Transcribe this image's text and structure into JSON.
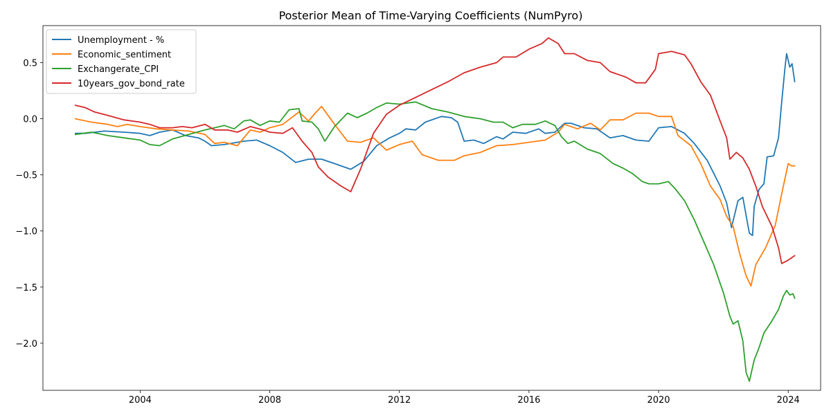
{
  "chart_data": {
    "type": "line",
    "title": "Posterior Mean of Time-Varying Coefficients (NumPyro)",
    "xlabel": "",
    "ylabel": "",
    "xlim": [
      2001.0,
      2025.0
    ],
    "ylim": [
      -2.42,
      0.83
    ],
    "xticks": [
      2004,
      2008,
      2012,
      2016,
      2020,
      2024
    ],
    "xtick_labels": [
      "2004",
      "2008",
      "2012",
      "2016",
      "2020",
      "2024"
    ],
    "yticks": [
      0.5,
      0.0,
      -0.5,
      -1.0,
      -1.5,
      -2.0
    ],
    "ytick_labels": [
      "0.5",
      "0.0",
      "−0.5",
      "−1.0",
      "−1.5",
      "−2.0"
    ],
    "legend_position": "top-left",
    "grid": false,
    "series": [
      {
        "name": "Unemployment - %",
        "color": "#1f77b4",
        "points": [
          [
            2002.0,
            -0.13
          ],
          [
            2002.3,
            -0.13
          ],
          [
            2002.9,
            -0.11
          ],
          [
            2003.5,
            -0.12
          ],
          [
            2004.0,
            -0.13
          ],
          [
            2004.3,
            -0.15
          ],
          [
            2004.6,
            -0.12
          ],
          [
            2005.0,
            -0.1
          ],
          [
            2005.4,
            -0.15
          ],
          [
            2005.8,
            -0.17
          ],
          [
            2006.0,
            -0.2
          ],
          [
            2006.2,
            -0.24
          ],
          [
            2006.6,
            -0.23
          ],
          [
            2007.2,
            -0.2
          ],
          [
            2007.6,
            -0.19
          ],
          [
            2008.0,
            -0.24
          ],
          [
            2008.4,
            -0.3
          ],
          [
            2008.8,
            -0.39
          ],
          [
            2009.2,
            -0.36
          ],
          [
            2009.6,
            -0.36
          ],
          [
            2010.0,
            -0.4
          ],
          [
            2010.5,
            -0.45
          ],
          [
            2010.9,
            -0.38
          ],
          [
            2011.3,
            -0.24
          ],
          [
            2011.7,
            -0.17
          ],
          [
            2012.0,
            -0.13
          ],
          [
            2012.2,
            -0.09
          ],
          [
            2012.5,
            -0.1
          ],
          [
            2012.8,
            -0.03
          ],
          [
            2013.3,
            0.02
          ],
          [
            2013.6,
            0.01
          ],
          [
            2013.8,
            -0.03
          ],
          [
            2014.0,
            -0.2
          ],
          [
            2014.3,
            -0.19
          ],
          [
            2014.6,
            -0.22
          ],
          [
            2015.0,
            -0.16
          ],
          [
            2015.2,
            -0.18
          ],
          [
            2015.5,
            -0.12
          ],
          [
            2015.9,
            -0.13
          ],
          [
            2016.3,
            -0.09
          ],
          [
            2016.5,
            -0.13
          ],
          [
            2016.8,
            -0.12
          ],
          [
            2017.1,
            -0.04
          ],
          [
            2017.3,
            -0.04
          ],
          [
            2017.7,
            -0.08
          ],
          [
            2018.1,
            -0.09
          ],
          [
            2018.5,
            -0.17
          ],
          [
            2018.9,
            -0.15
          ],
          [
            2019.3,
            -0.19
          ],
          [
            2019.7,
            -0.2
          ],
          [
            2020.0,
            -0.08
          ],
          [
            2020.4,
            -0.07
          ],
          [
            2020.8,
            -0.13
          ],
          [
            2021.1,
            -0.22
          ],
          [
            2021.5,
            -0.37
          ],
          [
            2021.9,
            -0.6
          ],
          [
            2022.1,
            -0.75
          ],
          [
            2022.25,
            -0.97
          ],
          [
            2022.45,
            -0.73
          ],
          [
            2022.6,
            -0.7
          ],
          [
            2022.8,
            -1.02
          ],
          [
            2022.9,
            -1.04
          ],
          [
            2022.95,
            -0.78
          ],
          [
            2023.1,
            -0.63
          ],
          [
            2023.25,
            -0.58
          ],
          [
            2023.35,
            -0.34
          ],
          [
            2023.55,
            -0.33
          ],
          [
            2023.7,
            -0.17
          ],
          [
            2023.8,
            0.15
          ],
          [
            2023.9,
            0.45
          ],
          [
            2023.95,
            0.58
          ],
          [
            2024.05,
            0.46
          ],
          [
            2024.12,
            0.49
          ],
          [
            2024.2,
            0.33
          ]
        ]
      },
      {
        "name": "Economic_sentiment",
        "color": "#ff7f0e",
        "points": [
          [
            2002.0,
            0.0
          ],
          [
            2002.5,
            -0.03
          ],
          [
            2003.0,
            -0.05
          ],
          [
            2003.3,
            -0.07
          ],
          [
            2003.6,
            -0.05
          ],
          [
            2004.0,
            -0.07
          ],
          [
            2004.5,
            -0.09
          ],
          [
            2005.0,
            -0.1
          ],
          [
            2005.5,
            -0.11
          ],
          [
            2006.0,
            -0.14
          ],
          [
            2006.3,
            -0.22
          ],
          [
            2006.6,
            -0.21
          ],
          [
            2007.0,
            -0.24
          ],
          [
            2007.4,
            -0.1
          ],
          [
            2007.7,
            -0.12
          ],
          [
            2008.0,
            -0.08
          ],
          [
            2008.4,
            -0.05
          ],
          [
            2008.9,
            0.06
          ],
          [
            2009.2,
            -0.02
          ],
          [
            2009.4,
            0.05
          ],
          [
            2009.6,
            0.11
          ],
          [
            2010.0,
            -0.05
          ],
          [
            2010.4,
            -0.2
          ],
          [
            2010.8,
            -0.21
          ],
          [
            2011.2,
            -0.17
          ],
          [
            2011.6,
            -0.28
          ],
          [
            2012.0,
            -0.23
          ],
          [
            2012.4,
            -0.2
          ],
          [
            2012.7,
            -0.32
          ],
          [
            2013.2,
            -0.37
          ],
          [
            2013.7,
            -0.37
          ],
          [
            2014.0,
            -0.33
          ],
          [
            2014.5,
            -0.3
          ],
          [
            2015.0,
            -0.24
          ],
          [
            2015.5,
            -0.23
          ],
          [
            2016.0,
            -0.21
          ],
          [
            2016.5,
            -0.19
          ],
          [
            2016.9,
            -0.12
          ],
          [
            2017.1,
            -0.05
          ],
          [
            2017.5,
            -0.09
          ],
          [
            2017.9,
            -0.04
          ],
          [
            2018.2,
            -0.1
          ],
          [
            2018.5,
            -0.01
          ],
          [
            2018.9,
            -0.01
          ],
          [
            2019.3,
            0.05
          ],
          [
            2019.7,
            0.05
          ],
          [
            2020.0,
            0.02
          ],
          [
            2020.4,
            0.02
          ],
          [
            2020.6,
            -0.15
          ],
          [
            2021.0,
            -0.24
          ],
          [
            2021.3,
            -0.4
          ],
          [
            2021.6,
            -0.6
          ],
          [
            2021.9,
            -0.72
          ],
          [
            2022.1,
            -0.87
          ],
          [
            2022.3,
            -0.96
          ],
          [
            2022.5,
            -1.2
          ],
          [
            2022.7,
            -1.4
          ],
          [
            2022.85,
            -1.49
          ],
          [
            2023.0,
            -1.3
          ],
          [
            2023.3,
            -1.15
          ],
          [
            2023.6,
            -0.95
          ],
          [
            2023.8,
            -0.67
          ],
          [
            2024.0,
            -0.4
          ],
          [
            2024.1,
            -0.42
          ],
          [
            2024.2,
            -0.42
          ]
        ]
      },
      {
        "name": "Exchangerate_CPI",
        "color": "#2ca02c",
        "points": [
          [
            2002.0,
            -0.14
          ],
          [
            2002.5,
            -0.12
          ],
          [
            2003.0,
            -0.15
          ],
          [
            2003.5,
            -0.17
          ],
          [
            2004.0,
            -0.19
          ],
          [
            2004.3,
            -0.23
          ],
          [
            2004.6,
            -0.24
          ],
          [
            2005.0,
            -0.18
          ],
          [
            2005.5,
            -0.14
          ],
          [
            2006.0,
            -0.1
          ],
          [
            2006.3,
            -0.08
          ],
          [
            2006.6,
            -0.06
          ],
          [
            2006.9,
            -0.09
          ],
          [
            2007.2,
            -0.02
          ],
          [
            2007.4,
            -0.01
          ],
          [
            2007.7,
            -0.06
          ],
          [
            2008.0,
            -0.02
          ],
          [
            2008.3,
            -0.03
          ],
          [
            2008.6,
            0.08
          ],
          [
            2008.9,
            0.09
          ],
          [
            2009.0,
            -0.02
          ],
          [
            2009.3,
            -0.03
          ],
          [
            2009.5,
            -0.09
          ],
          [
            2009.7,
            -0.2
          ],
          [
            2010.0,
            -0.07
          ],
          [
            2010.4,
            0.05
          ],
          [
            2010.7,
            0.01
          ],
          [
            2011.0,
            0.05
          ],
          [
            2011.3,
            0.1
          ],
          [
            2011.6,
            0.14
          ],
          [
            2012.0,
            0.13
          ],
          [
            2012.5,
            0.15
          ],
          [
            2013.0,
            0.09
          ],
          [
            2013.5,
            0.06
          ],
          [
            2014.0,
            0.02
          ],
          [
            2014.5,
            0.0
          ],
          [
            2014.9,
            -0.03
          ],
          [
            2015.2,
            -0.03
          ],
          [
            2015.5,
            -0.08
          ],
          [
            2015.8,
            -0.05
          ],
          [
            2016.2,
            -0.05
          ],
          [
            2016.5,
            -0.02
          ],
          [
            2016.8,
            -0.06
          ],
          [
            2017.0,
            -0.16
          ],
          [
            2017.2,
            -0.22
          ],
          [
            2017.4,
            -0.2
          ],
          [
            2017.8,
            -0.27
          ],
          [
            2018.2,
            -0.31
          ],
          [
            2018.6,
            -0.4
          ],
          [
            2018.9,
            -0.44
          ],
          [
            2019.2,
            -0.49
          ],
          [
            2019.5,
            -0.56
          ],
          [
            2019.7,
            -0.58
          ],
          [
            2020.0,
            -0.58
          ],
          [
            2020.3,
            -0.56
          ],
          [
            2020.5,
            -0.62
          ],
          [
            2020.8,
            -0.73
          ],
          [
            2021.1,
            -0.9
          ],
          [
            2021.4,
            -1.1
          ],
          [
            2021.7,
            -1.3
          ],
          [
            2022.0,
            -1.55
          ],
          [
            2022.2,
            -1.76
          ],
          [
            2022.3,
            -1.83
          ],
          [
            2022.45,
            -1.8
          ],
          [
            2022.6,
            -1.98
          ],
          [
            2022.7,
            -2.26
          ],
          [
            2022.8,
            -2.34
          ],
          [
            2022.95,
            -2.15
          ],
          [
            2023.1,
            -2.04
          ],
          [
            2023.25,
            -1.91
          ],
          [
            2023.5,
            -1.8
          ],
          [
            2023.7,
            -1.7
          ],
          [
            2023.85,
            -1.58
          ],
          [
            2023.95,
            -1.53
          ],
          [
            2024.05,
            -1.57
          ],
          [
            2024.15,
            -1.56
          ],
          [
            2024.2,
            -1.6
          ]
        ]
      },
      {
        "name": "10years_gov_bond_rate",
        "color": "#d62728",
        "points": [
          [
            2002.0,
            0.12
          ],
          [
            2002.3,
            0.1
          ],
          [
            2002.6,
            0.06
          ],
          [
            2003.0,
            0.03
          ],
          [
            2003.5,
            -0.01
          ],
          [
            2004.0,
            -0.03
          ],
          [
            2004.3,
            -0.05
          ],
          [
            2004.6,
            -0.08
          ],
          [
            2005.0,
            -0.08
          ],
          [
            2005.3,
            -0.07
          ],
          [
            2005.6,
            -0.08
          ],
          [
            2006.0,
            -0.05
          ],
          [
            2006.3,
            -0.1
          ],
          [
            2006.7,
            -0.1
          ],
          [
            2007.0,
            -0.12
          ],
          [
            2007.4,
            -0.07
          ],
          [
            2007.8,
            -0.1
          ],
          [
            2008.0,
            -0.12
          ],
          [
            2008.4,
            -0.13
          ],
          [
            2008.7,
            -0.08
          ],
          [
            2009.0,
            -0.2
          ],
          [
            2009.3,
            -0.3
          ],
          [
            2009.5,
            -0.43
          ],
          [
            2009.8,
            -0.52
          ],
          [
            2010.2,
            -0.6
          ],
          [
            2010.5,
            -0.65
          ],
          [
            2010.8,
            -0.45
          ],
          [
            2011.2,
            -0.13
          ],
          [
            2011.6,
            0.04
          ],
          [
            2012.0,
            0.12
          ],
          [
            2012.5,
            0.19
          ],
          [
            2013.0,
            0.26
          ],
          [
            2013.5,
            0.33
          ],
          [
            2014.0,
            0.41
          ],
          [
            2014.5,
            0.46
          ],
          [
            2015.0,
            0.5
          ],
          [
            2015.2,
            0.55
          ],
          [
            2015.6,
            0.55
          ],
          [
            2016.0,
            0.62
          ],
          [
            2016.4,
            0.67
          ],
          [
            2016.6,
            0.72
          ],
          [
            2016.9,
            0.67
          ],
          [
            2017.1,
            0.58
          ],
          [
            2017.4,
            0.58
          ],
          [
            2017.8,
            0.52
          ],
          [
            2018.2,
            0.5
          ],
          [
            2018.5,
            0.42
          ],
          [
            2018.8,
            0.39
          ],
          [
            2019.0,
            0.37
          ],
          [
            2019.3,
            0.32
          ],
          [
            2019.6,
            0.32
          ],
          [
            2019.9,
            0.44
          ],
          [
            2020.0,
            0.58
          ],
          [
            2020.4,
            0.6
          ],
          [
            2020.8,
            0.57
          ],
          [
            2021.0,
            0.49
          ],
          [
            2021.3,
            0.33
          ],
          [
            2021.6,
            0.21
          ],
          [
            2021.9,
            -0.02
          ],
          [
            2022.1,
            -0.17
          ],
          [
            2022.2,
            -0.36
          ],
          [
            2022.4,
            -0.3
          ],
          [
            2022.6,
            -0.35
          ],
          [
            2022.8,
            -0.45
          ],
          [
            2023.0,
            -0.6
          ],
          [
            2023.2,
            -0.78
          ],
          [
            2023.5,
            -0.96
          ],
          [
            2023.7,
            -1.15
          ],
          [
            2023.8,
            -1.29
          ],
          [
            2024.0,
            -1.26
          ],
          [
            2024.2,
            -1.22
          ]
        ]
      }
    ]
  }
}
